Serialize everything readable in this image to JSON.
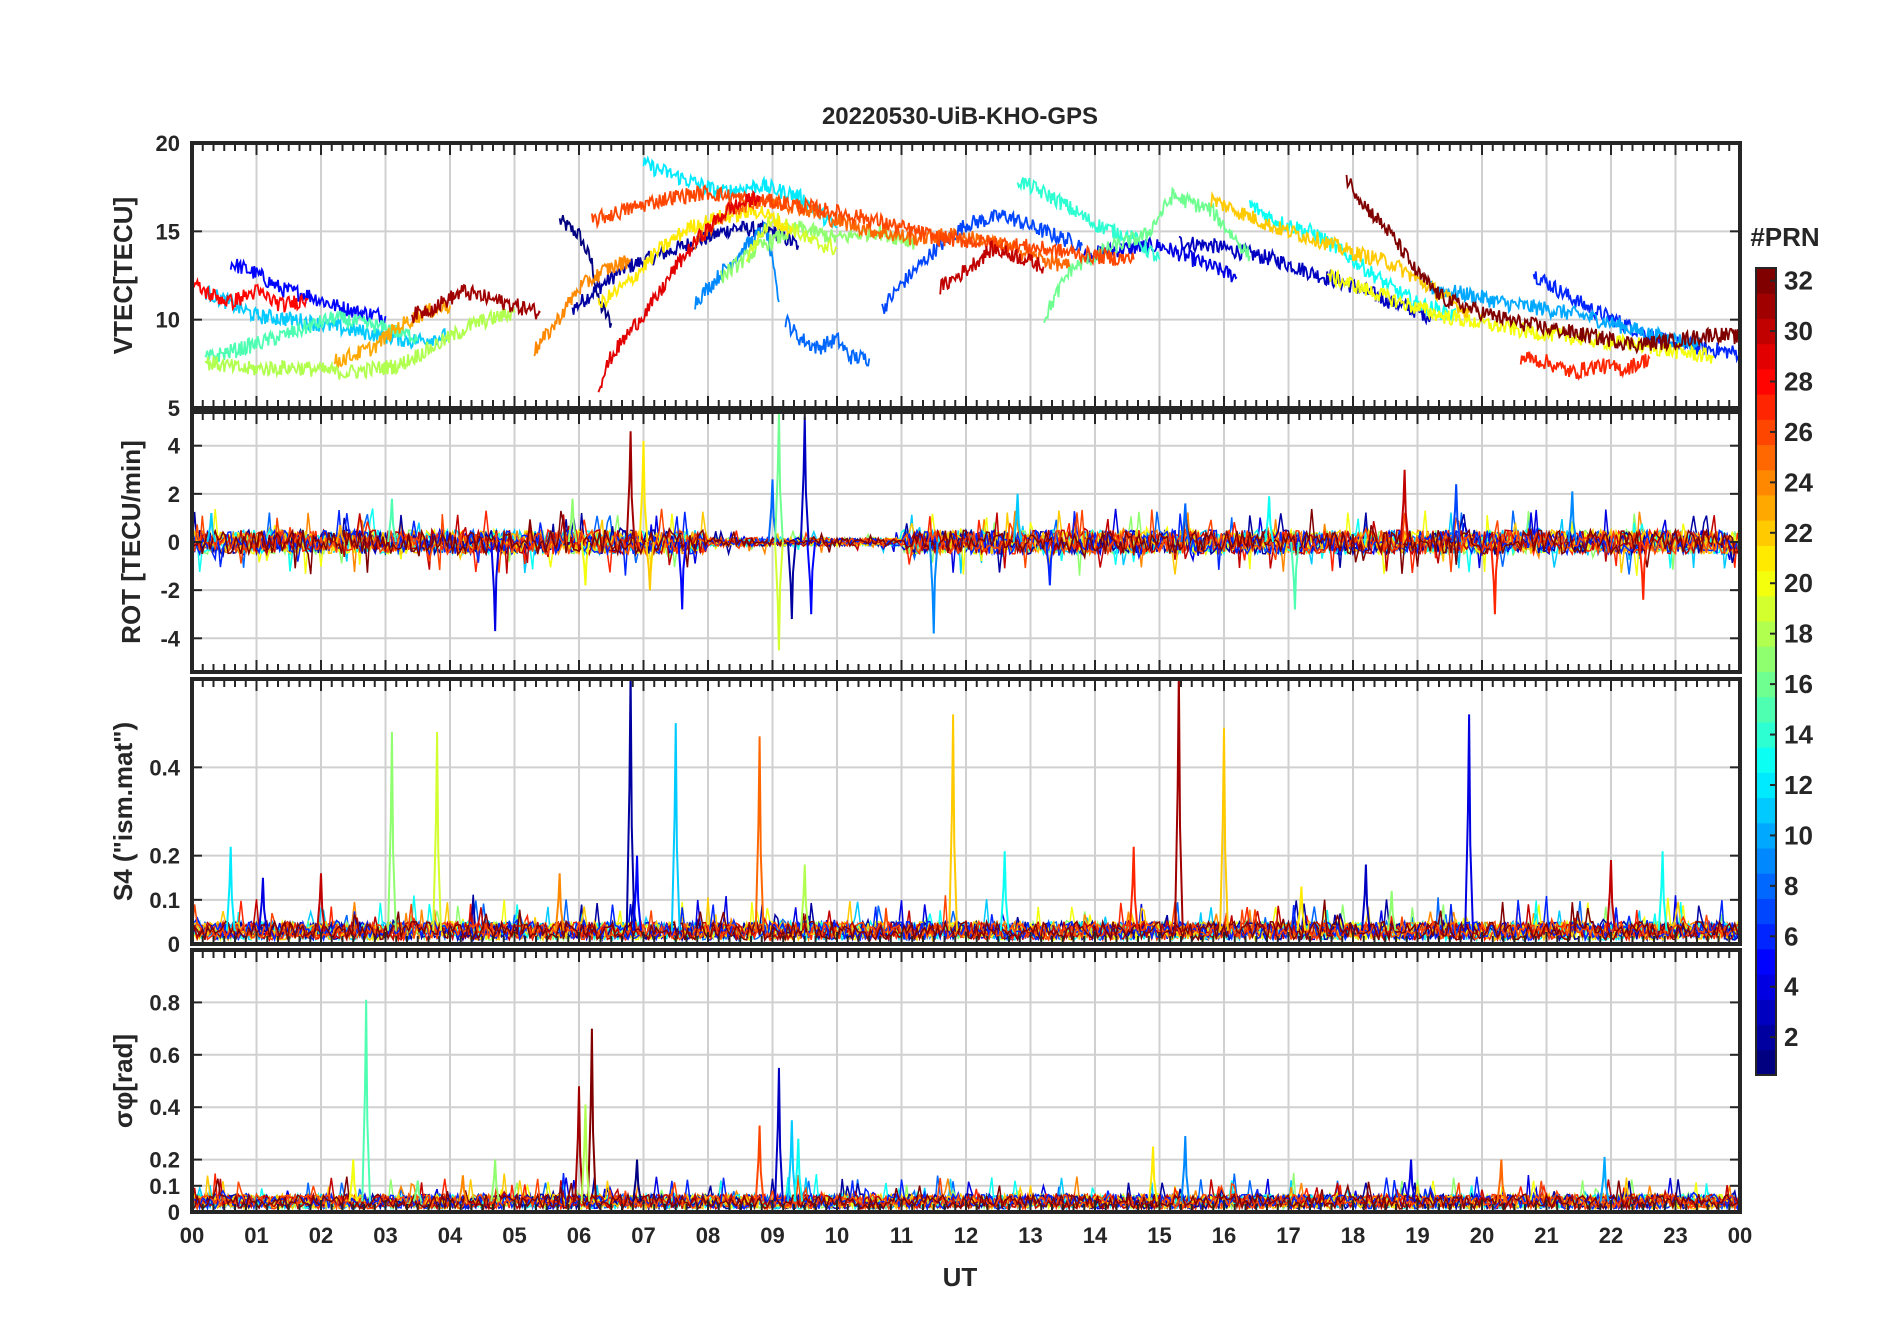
{
  "figure": {
    "title": "20220530-UiB-KHO-GPS",
    "xlabel": "UT",
    "colorbar": {
      "label": "#PRN",
      "ticks": [
        2,
        4,
        6,
        8,
        10,
        12,
        14,
        16,
        18,
        20,
        22,
        24,
        26,
        28,
        30,
        32
      ],
      "range": [
        1,
        32
      ],
      "colormap": "jet"
    }
  },
  "chart_data": [
    {
      "type": "line",
      "title": "20220530-UiB-KHO-GPS",
      "xlabel": "",
      "ylabel": "VTEC[TECU]",
      "xlim": [
        0,
        24
      ],
      "ylim": [
        5,
        20
      ],
      "yticks": [
        5,
        10,
        15,
        20
      ],
      "grid": true,
      "color_by": "PRN",
      "series": [
        {
          "prn": 1,
          "x": [
            5.7,
            6.0,
            6.2,
            6.3,
            6.5
          ],
          "y": [
            15.6,
            14.8,
            13.2,
            11.0,
            9.8
          ]
        },
        {
          "prn": 2,
          "x": [
            5.9,
            6.3,
            6.7,
            7.2,
            7.8,
            8.4,
            9.0,
            9.4
          ],
          "y": [
            10.6,
            11.8,
            12.9,
            13.6,
            14.4,
            15.2,
            15.0,
            14.2
          ]
        },
        {
          "prn": 3,
          "x": [
            15.3,
            15.8,
            16.3,
            16.8,
            17.4,
            18.0,
            18.6,
            19.2
          ],
          "y": [
            14.4,
            14.2,
            13.8,
            13.4,
            12.6,
            11.9,
            11.0,
            10.2
          ]
        },
        {
          "prn": 4,
          "x": [
            13.8,
            14.4,
            15.0,
            15.4,
            15.8,
            16.2
          ],
          "y": [
            13.6,
            14.0,
            14.2,
            13.6,
            13.0,
            12.4
          ]
        },
        {
          "prn": 5,
          "x": [
            0.6,
            1.0,
            1.4,
            1.8,
            2.2,
            2.6,
            3.0
          ],
          "y": [
            13.2,
            12.6,
            11.7,
            11.4,
            10.8,
            10.4,
            10.2
          ]
        },
        {
          "prn": 6,
          "x": [
            20.8,
            21.3,
            21.8,
            22.3,
            22.8,
            23.4,
            24.0
          ],
          "y": [
            12.6,
            11.4,
            10.4,
            9.6,
            8.8,
            8.4,
            8.1
          ]
        },
        {
          "prn": 7,
          "x": [
            10.7,
            11.0,
            11.5,
            12.0,
            12.6,
            13.2,
            13.8
          ],
          "y": [
            10.6,
            12.0,
            13.9,
            15.4,
            15.9,
            15.0,
            14.2
          ]
        },
        {
          "prn": 8,
          "x": [
            9.2,
            9.4,
            9.7,
            10.0,
            10.2,
            10.5
          ],
          "y": [
            10.0,
            9.0,
            8.4,
            8.9,
            7.9,
            7.8
          ]
        },
        {
          "prn": 9,
          "x": [
            7.8,
            8.2,
            8.6,
            8.9,
            9.1
          ],
          "y": [
            11.0,
            12.6,
            14.2,
            15.2,
            11.0
          ]
        },
        {
          "prn": 10,
          "x": [
            19.2,
            19.8,
            20.4,
            21.0,
            21.6,
            22.2,
            22.8,
            23.4
          ],
          "y": [
            11.8,
            11.4,
            10.9,
            10.6,
            10.2,
            9.6,
            9.0,
            8.6
          ]
        },
        {
          "prn": 11,
          "x": [
            0.2,
            0.6,
            1.0,
            1.6,
            2.2,
            2.8,
            3.4,
            4.0
          ],
          "y": [
            11.6,
            10.9,
            10.2,
            10.0,
            9.6,
            9.2,
            8.8,
            9.1
          ]
        },
        {
          "prn": 12,
          "x": [
            7.0,
            7.6,
            8.2,
            8.8,
            9.4,
            10.0
          ],
          "y": [
            18.8,
            18.0,
            17.2,
            17.6,
            17.0,
            15.2
          ]
        },
        {
          "prn": 13,
          "x": [
            16.4,
            16.8,
            17.4,
            18.0,
            18.6,
            19.0,
            19.6
          ],
          "y": [
            16.5,
            15.6,
            14.9,
            13.4,
            11.8,
            10.9,
            10.2
          ]
        },
        {
          "prn": 14,
          "x": [
            12.8,
            13.4,
            14.0,
            14.6,
            15.0
          ],
          "y": [
            17.9,
            16.8,
            15.4,
            14.6,
            13.4
          ]
        },
        {
          "prn": 15,
          "x": [
            0.2,
            0.8,
            1.5,
            2.2,
            2.9,
            3.5
          ],
          "y": [
            7.8,
            8.4,
            9.2,
            10.1,
            9.6,
            9.0
          ]
        },
        {
          "prn": 16,
          "x": [
            13.2,
            13.6,
            14.2,
            14.8,
            15.2,
            15.8,
            16.4
          ],
          "y": [
            10.0,
            12.8,
            14.0,
            14.8,
            17.0,
            16.2,
            13.6
          ]
        },
        {
          "prn": 17,
          "x": [
            8.2,
            8.8,
            9.4,
            10.0,
            10.6,
            11.2
          ],
          "y": [
            12.4,
            14.1,
            15.2,
            14.6,
            15.0,
            14.4
          ]
        },
        {
          "prn": 18,
          "x": [
            0.2,
            0.8,
            1.6,
            2.4,
            3.2,
            3.8,
            4.4,
            5.0
          ],
          "y": [
            7.6,
            7.2,
            7.3,
            7.0,
            7.4,
            8.6,
            9.8,
            10.4
          ]
        },
        {
          "prn": 19,
          "x": [
            8.6,
            9.0,
            9.3,
            9.6,
            10.0
          ],
          "y": [
            13.6,
            15.8,
            15.2,
            14.4,
            14.0
          ]
        },
        {
          "prn": 20,
          "x": [
            17.6,
            18.2,
            18.8,
            19.4,
            20.0,
            20.6,
            21.2,
            21.8,
            22.4,
            23.0,
            23.6
          ],
          "y": [
            12.5,
            11.7,
            10.9,
            10.2,
            9.8,
            9.4,
            9.1,
            8.8,
            8.6,
            8.2,
            7.9
          ]
        },
        {
          "prn": 21,
          "x": [
            6.3,
            6.8,
            7.2,
            7.7,
            8.2,
            8.8,
            9.3
          ],
          "y": [
            10.8,
            12.2,
            13.8,
            15.2,
            15.8,
            16.2,
            15.0
          ]
        },
        {
          "prn": 22,
          "x": [
            15.8,
            16.3,
            16.8,
            17.4,
            18.0,
            18.6,
            19.2,
            19.8
          ],
          "y": [
            16.8,
            16.0,
            15.2,
            14.6,
            13.8,
            13.2,
            11.8,
            10.4
          ]
        },
        {
          "prn": 23,
          "x": [
            2.2,
            2.8,
            3.2,
            3.6,
            4.0
          ],
          "y": [
            7.6,
            8.4,
            9.6,
            10.4,
            10.8
          ]
        },
        {
          "prn": 24,
          "x": [
            5.3,
            5.6,
            6.0,
            6.4,
            6.8
          ],
          "y": [
            8.2,
            9.6,
            11.8,
            12.8,
            13.4
          ]
        },
        {
          "prn": 25,
          "x": [
            7.8,
            8.3,
            8.8,
            9.4,
            10.0,
            10.6,
            11.2,
            11.8,
            12.4,
            13.0,
            13.6
          ],
          "y": [
            14.4,
            16.1,
            16.8,
            16.4,
            15.6,
            15.0,
            14.6,
            14.8,
            14.4,
            13.6,
            13.0
          ]
        },
        {
          "prn": 26,
          "x": [
            6.2,
            6.8,
            7.4,
            8.0,
            8.6,
            9.2,
            9.8,
            10.4,
            11.0,
            11.6,
            12.2,
            12.8,
            13.4,
            14.0,
            14.6
          ],
          "y": [
            15.6,
            16.3,
            16.9,
            17.2,
            16.8,
            16.6,
            16.2,
            15.8,
            15.2,
            14.6,
            14.4,
            14.2,
            13.9,
            13.6,
            13.4
          ]
        },
        {
          "prn": 27,
          "x": [
            20.6,
            21.0,
            21.4,
            21.8,
            22.2,
            22.6
          ],
          "y": [
            7.9,
            7.6,
            7.0,
            7.4,
            7.2,
            7.8
          ]
        },
        {
          "prn": 28,
          "x": [
            0.0,
            0.3,
            0.6,
            1.0,
            1.4,
            1.8
          ],
          "y": [
            12.0,
            11.4,
            11.0,
            11.6,
            10.8,
            11.2
          ]
        },
        {
          "prn": 29,
          "x": [
            6.3,
            6.5,
            6.8,
            7.2,
            7.5,
            7.9,
            8.3,
            8.8
          ],
          "y": [
            6.2,
            7.9,
            9.4,
            11.2,
            13.0,
            14.8,
            16.2,
            17.0
          ]
        },
        {
          "prn": 30,
          "x": [
            11.6,
            12.0,
            12.4,
            12.8,
            13.2
          ],
          "y": [
            11.8,
            12.8,
            14.0,
            13.6,
            13.0
          ]
        },
        {
          "prn": 31,
          "x": [
            3.4,
            3.8,
            4.2,
            4.6,
            5.0,
            5.4
          ],
          "y": [
            10.2,
            10.8,
            11.6,
            11.2,
            10.8,
            10.4
          ]
        },
        {
          "prn": 32,
          "x": [
            17.9,
            18.2,
            18.6,
            19.0,
            19.4,
            20.0,
            20.6,
            21.2,
            21.8,
            22.4,
            23.0,
            23.6,
            24.0
          ],
          "y": [
            18.0,
            16.4,
            14.8,
            12.6,
            11.2,
            10.4,
            9.8,
            9.4,
            9.0,
            8.6,
            8.8,
            9.2,
            9.0
          ]
        }
      ]
    },
    {
      "type": "line",
      "ylabel": "ROT [TECU/min]",
      "xlim": [
        0,
        24
      ],
      "ylim": [
        -5.4,
        5.4
      ],
      "yticks": [
        -4,
        -2,
        0,
        2,
        4
      ],
      "grid": true,
      "color_by": "PRN",
      "baseline_amplitude": 0.5,
      "spikes": [
        {
          "x": 0.3,
          "y": 1.2,
          "prn": 11
        },
        {
          "x": 2.3,
          "y": 0.7,
          "prn": 23
        },
        {
          "x": 3.1,
          "y": 1.8,
          "prn": 15
        },
        {
          "x": 4.7,
          "y": -3.7,
          "prn": 4
        },
        {
          "x": 5.9,
          "y": 1.8,
          "prn": 17
        },
        {
          "x": 6.1,
          "y": -1.8,
          "prn": 20
        },
        {
          "x": 6.8,
          "y": 4.6,
          "prn": 31
        },
        {
          "x": 7.0,
          "y": 4.2,
          "prn": 21
        },
        {
          "x": 7.1,
          "y": -2.0,
          "prn": 22
        },
        {
          "x": 7.6,
          "y": -2.8,
          "prn": 5
        },
        {
          "x": 9.0,
          "y": 2.6,
          "prn": 8
        },
        {
          "x": 9.1,
          "y": 5.4,
          "prn": 16
        },
        {
          "x": 9.1,
          "y": -4.5,
          "prn": 19
        },
        {
          "x": 9.3,
          "y": -3.2,
          "prn": 2
        },
        {
          "x": 9.5,
          "y": 5.2,
          "prn": 3
        },
        {
          "x": 9.6,
          "y": -3.0,
          "prn": 5
        },
        {
          "x": 11.5,
          "y": -3.8,
          "prn": 9
        },
        {
          "x": 12.8,
          "y": 2.0,
          "prn": 11
        },
        {
          "x": 13.3,
          "y": -1.8,
          "prn": 6
        },
        {
          "x": 15.4,
          "y": 1.6,
          "prn": 8
        },
        {
          "x": 16.7,
          "y": 1.9,
          "prn": 13
        },
        {
          "x": 17.1,
          "y": -2.8,
          "prn": 15
        },
        {
          "x": 18.8,
          "y": 3.0,
          "prn": 30
        },
        {
          "x": 19.6,
          "y": 2.4,
          "prn": 7
        },
        {
          "x": 20.2,
          "y": -3.0,
          "prn": 27
        },
        {
          "x": 21.4,
          "y": 2.1,
          "prn": 9
        },
        {
          "x": 22.5,
          "y": -2.4,
          "prn": 27
        }
      ]
    },
    {
      "type": "line",
      "ylabel": "S4 (\"ism.mat\")",
      "xlim": [
        0,
        24
      ],
      "ylim": [
        0,
        0.6
      ],
      "yticks": [
        0,
        0.1,
        0.2,
        0.4
      ],
      "ytick_labels": [
        "0",
        "0.1",
        "0.2",
        "0.4"
      ],
      "grid": true,
      "color_by": "PRN",
      "baseline": 0.03,
      "spikes": [
        {
          "x": 0.6,
          "y": 0.22,
          "prn": 12
        },
        {
          "x": 1.1,
          "y": 0.15,
          "prn": 4
        },
        {
          "x": 2.0,
          "y": 0.16,
          "prn": 30
        },
        {
          "x": 3.1,
          "y": 0.48,
          "prn": 17
        },
        {
          "x": 3.8,
          "y": 0.48,
          "prn": 19
        },
        {
          "x": 5.7,
          "y": 0.16,
          "prn": 24
        },
        {
          "x": 6.8,
          "y": 0.62,
          "prn": 2
        },
        {
          "x": 6.9,
          "y": 0.2,
          "prn": 5
        },
        {
          "x": 7.5,
          "y": 0.5,
          "prn": 11
        },
        {
          "x": 8.8,
          "y": 0.47,
          "prn": 25
        },
        {
          "x": 9.5,
          "y": 0.18,
          "prn": 18
        },
        {
          "x": 11.8,
          "y": 0.52,
          "prn": 22
        },
        {
          "x": 12.6,
          "y": 0.21,
          "prn": 13
        },
        {
          "x": 14.6,
          "y": 0.22,
          "prn": 27
        },
        {
          "x": 15.3,
          "y": 0.62,
          "prn": 31
        },
        {
          "x": 16.0,
          "y": 0.49,
          "prn": 22
        },
        {
          "x": 17.2,
          "y": 0.13,
          "prn": 21
        },
        {
          "x": 18.2,
          "y": 0.18,
          "prn": 3
        },
        {
          "x": 18.6,
          "y": 0.12,
          "prn": 17
        },
        {
          "x": 19.8,
          "y": 0.52,
          "prn": 4
        },
        {
          "x": 22.0,
          "y": 0.19,
          "prn": 30
        },
        {
          "x": 22.8,
          "y": 0.21,
          "prn": 13
        }
      ]
    },
    {
      "type": "line",
      "ylabel": "σφ[rad]",
      "xlim": [
        0,
        24
      ],
      "ylim": [
        0,
        1.0
      ],
      "yticks": [
        0,
        0.1,
        0.2,
        0.4,
        0.6,
        0.8
      ],
      "ytick_labels": [
        "0",
        "0.1",
        "0.2",
        "0.4",
        "0.6",
        "0.8"
      ],
      "grid": true,
      "color_by": "PRN",
      "baseline": 0.04,
      "spikes": [
        {
          "x": 2.7,
          "y": 0.81,
          "prn": 15
        },
        {
          "x": 2.5,
          "y": 0.2,
          "prn": 20
        },
        {
          "x": 3.5,
          "y": 0.12,
          "prn": 16
        },
        {
          "x": 4.2,
          "y": 0.14,
          "prn": 24
        },
        {
          "x": 4.7,
          "y": 0.2,
          "prn": 17
        },
        {
          "x": 6.0,
          "y": 0.48,
          "prn": 31
        },
        {
          "x": 6.2,
          "y": 0.7,
          "prn": 32
        },
        {
          "x": 6.1,
          "y": 0.41,
          "prn": 18
        },
        {
          "x": 6.9,
          "y": 0.2,
          "prn": 1
        },
        {
          "x": 8.8,
          "y": 0.33,
          "prn": 26
        },
        {
          "x": 9.1,
          "y": 0.55,
          "prn": 3
        },
        {
          "x": 9.3,
          "y": 0.35,
          "prn": 11
        },
        {
          "x": 9.4,
          "y": 0.28,
          "prn": 13
        },
        {
          "x": 14.9,
          "y": 0.25,
          "prn": 21
        },
        {
          "x": 15.4,
          "y": 0.29,
          "prn": 9
        },
        {
          "x": 18.9,
          "y": 0.2,
          "prn": 4
        },
        {
          "x": 20.3,
          "y": 0.2,
          "prn": 25
        },
        {
          "x": 21.9,
          "y": 0.21,
          "prn": 10
        }
      ]
    }
  ],
  "xaxis": {
    "tick_labels": [
      "00",
      "01",
      "02",
      "03",
      "04",
      "05",
      "06",
      "07",
      "08",
      "09",
      "10",
      "11",
      "12",
      "13",
      "14",
      "15",
      "16",
      "17",
      "18",
      "19",
      "20",
      "21",
      "22",
      "23",
      "00"
    ]
  }
}
